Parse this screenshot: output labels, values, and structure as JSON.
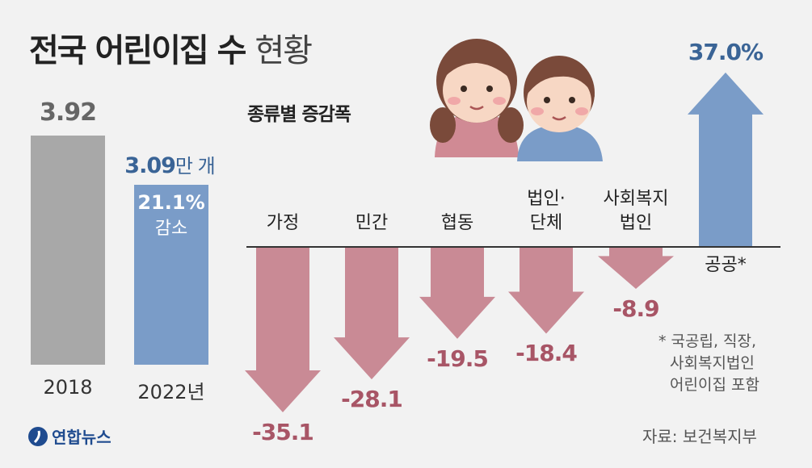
{
  "title": {
    "bold": "전국 어린이집 수",
    "light": "현황"
  },
  "totals": {
    "years": [
      "2018",
      "2022년"
    ],
    "values_label": [
      "3.92",
      "3.09"
    ],
    "unit": "만 개",
    "values": [
      3.92,
      3.09
    ],
    "change_pct": "21.1%",
    "change_word": "감소",
    "colors": {
      "2018": "#a8a8a8",
      "2022": "#7a9cc8",
      "label2022": "#3a6496"
    }
  },
  "chart_data": {
    "type": "bar",
    "title": "종류별 증감폭",
    "unit": "%",
    "categories": [
      [
        "가정"
      ],
      [
        "민간"
      ],
      [
        "협동"
      ],
      [
        "법인·",
        "단체"
      ],
      [
        "사회복지",
        "법인"
      ],
      [
        "공공*"
      ]
    ],
    "values": [
      -35.1,
      -28.1,
      -19.5,
      -18.4,
      -8.9,
      37.0
    ],
    "labels": [
      "-35.1",
      "-28.1",
      "-19.5",
      "-18.4",
      "-8.9",
      "37.0%"
    ],
    "colors": {
      "negative": "#c98a95",
      "positive": "#7a9cc8",
      "neg_label": "#a85566",
      "pos_label": "#3a6496"
    }
  },
  "note": [
    "* 국공립, 직장,",
    "사회복지법인",
    "어린이집 포함"
  ],
  "source": "자료: 보건복지부",
  "logo": "연합뉴스"
}
